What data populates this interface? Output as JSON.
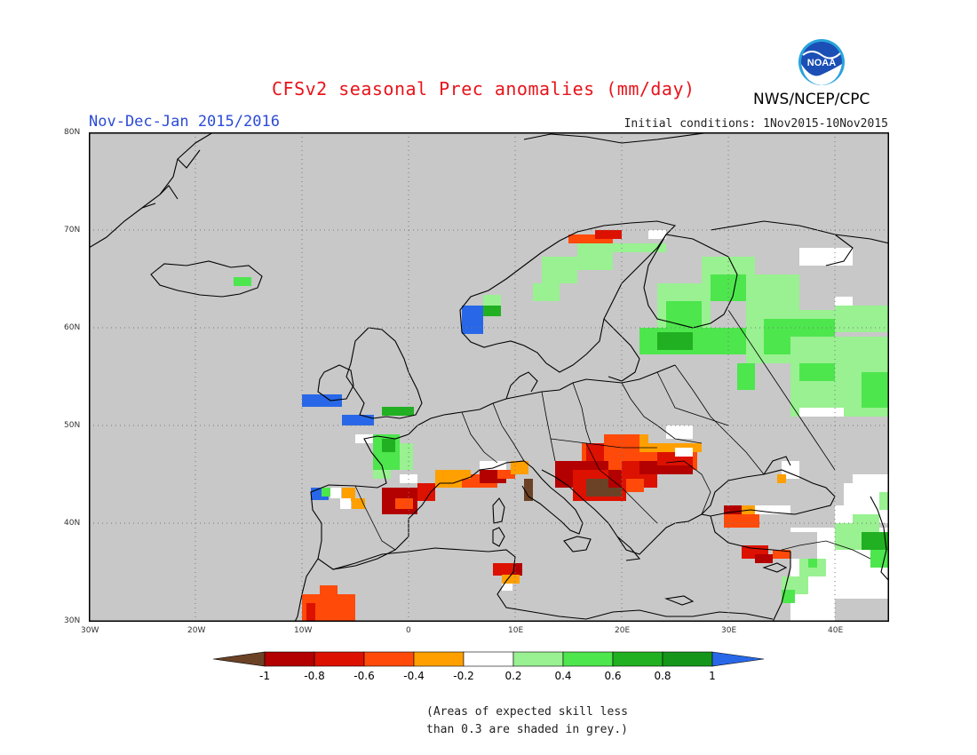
{
  "title": "CFSv2 seasonal Prec anomalies (mm/day)",
  "period": "Nov-Dec-Jan 2015/2016",
  "initial_conditions": "Initial conditions: 1Nov2015-10Nov2015",
  "agency": "NWS/NCEP/CPC",
  "logo_text": "NOAA",
  "lat_labels": [
    "80N",
    "70N",
    "60N",
    "50N",
    "40N",
    "30N"
  ],
  "lon_labels": [
    "30W",
    "20W",
    "10W",
    "0",
    "10E",
    "20E",
    "30E",
    "40E"
  ],
  "colorbar_labels": [
    "-1",
    "-0.8",
    "-0.6",
    "-0.4",
    "-0.2",
    "0.2",
    "0.4",
    "0.6",
    "0.8",
    "1"
  ],
  "colorbar_colors": [
    "#6b4226",
    "#b30000",
    "#dd1100",
    "#ff4a0a",
    "#ffa000",
    "#ffffff",
    "#99f191",
    "#4de64d",
    "#21b021",
    "#15961a",
    "#2868e8"
  ],
  "note_line1": "(Areas of expected skill less",
  "note_line2": "than 0.3 are shaded in grey.)",
  "map_colors": {
    "grey": "#c8c8c8",
    "ocean": "#c8c8c8",
    "coast": "#000000"
  }
}
